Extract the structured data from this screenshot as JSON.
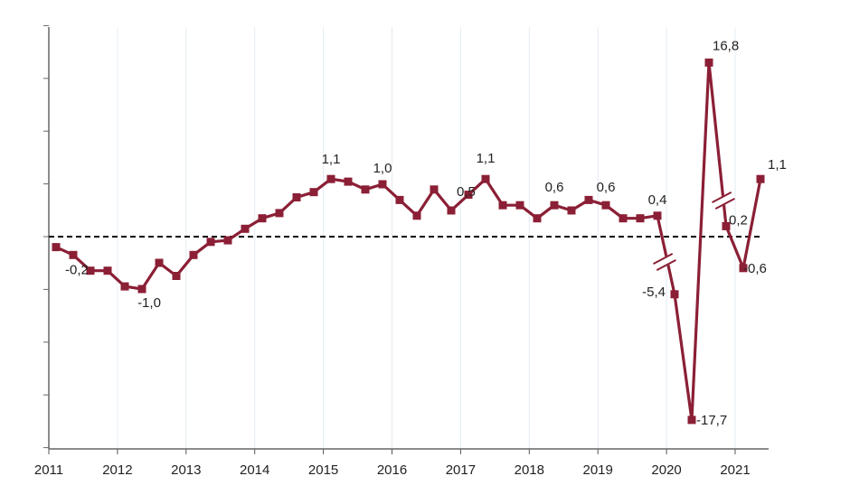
{
  "chart_data": {
    "type": "line",
    "title": "",
    "xlabel": "",
    "ylabel": "",
    "grid": "vertical lines at each year",
    "legend": "none",
    "y_axis_broken": true,
    "reference_line": {
      "y": 0,
      "style": "dashed",
      "color": "#000000"
    },
    "x_tick_labels": [
      "2011",
      "2012",
      "2013",
      "2014",
      "2015",
      "2016",
      "2017",
      "2018",
      "2019",
      "2020",
      "2021"
    ],
    "x": [
      "2011Q1",
      "2011Q2",
      "2011Q3",
      "2011Q4",
      "2012Q1",
      "2012Q2",
      "2012Q3",
      "2012Q4",
      "2013Q1",
      "2013Q2",
      "2013Q3",
      "2013Q4",
      "2014Q1",
      "2014Q2",
      "2014Q3",
      "2014Q4",
      "2015Q1",
      "2015Q2",
      "2015Q3",
      "2015Q4",
      "2016Q1",
      "2016Q2",
      "2016Q3",
      "2016Q4",
      "2017Q1",
      "2017Q2",
      "2017Q3",
      "2017Q4",
      "2018Q1",
      "2018Q2",
      "2018Q3",
      "2018Q4",
      "2019Q1",
      "2019Q2",
      "2019Q3",
      "2019Q4",
      "2020Q1",
      "2020Q2",
      "2020Q3",
      "2020Q4",
      "2021Q1",
      "2021Q2"
    ],
    "series": [
      {
        "color": "#8b1f35",
        "values": [
          -0.2,
          -0.35,
          -0.65,
          -0.65,
          -0.95,
          -1.0,
          -0.5,
          -0.75,
          -0.35,
          -0.1,
          -0.07,
          0.15,
          0.35,
          0.45,
          0.75,
          0.85,
          1.1,
          1.05,
          0.9,
          1.0,
          0.7,
          0.4,
          0.9,
          0.5,
          0.8,
          1.1,
          0.6,
          0.6,
          0.35,
          0.6,
          0.5,
          0.7,
          0.6,
          0.35,
          0.35,
          0.4,
          -5.4,
          -17.7,
          16.8,
          0.2,
          -0.6,
          1.1
        ]
      }
    ],
    "data_labels": [
      {
        "index": 0,
        "text": "-0,2"
      },
      {
        "index": 5,
        "text": "-1,0"
      },
      {
        "index": 16,
        "text": "1,1"
      },
      {
        "index": 19,
        "text": "1,0"
      },
      {
        "index": 23,
        "text": "0,5"
      },
      {
        "index": 25,
        "text": "1,1"
      },
      {
        "index": 29,
        "text": "0,6"
      },
      {
        "index": 32,
        "text": "0,6"
      },
      {
        "index": 35,
        "text": "0,4"
      },
      {
        "index": 36,
        "text": "-5,4"
      },
      {
        "index": 37,
        "text": "-17,7"
      },
      {
        "index": 38,
        "text": "16,8"
      },
      {
        "index": 39,
        "text": "0,2"
      },
      {
        "index": 40,
        "text": "-0,6"
      },
      {
        "index": 41,
        "text": "1,1"
      }
    ]
  }
}
